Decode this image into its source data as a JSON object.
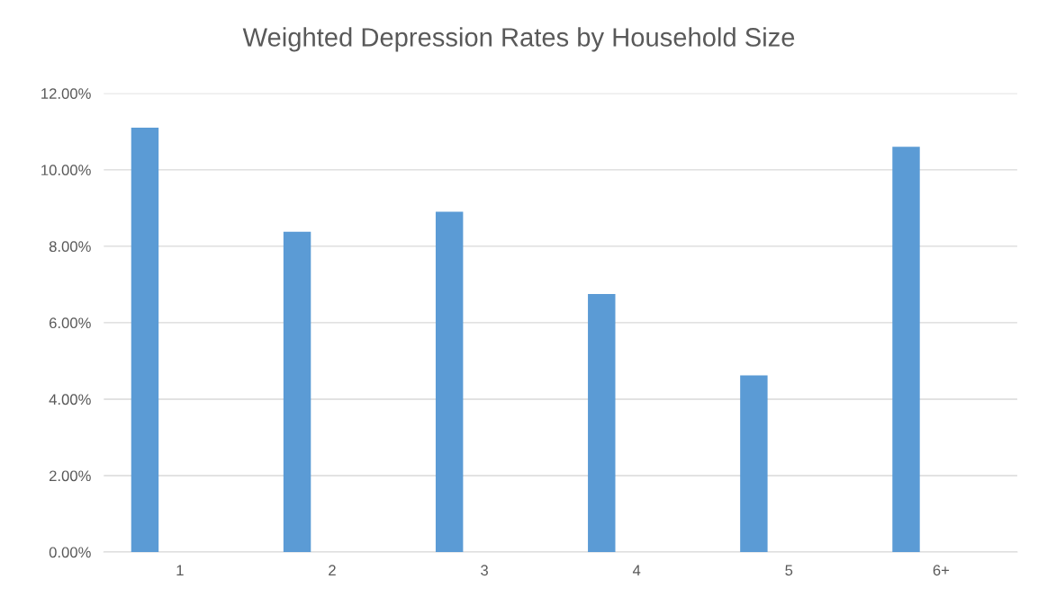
{
  "chart_data": {
    "type": "bar",
    "title": "Weighted Depression Rates by Household Size",
    "categories": [
      "1",
      "2",
      "3",
      "4",
      "5",
      "6+"
    ],
    "values": [
      11.1,
      8.38,
      8.9,
      6.75,
      4.62,
      10.6
    ],
    "color": "#5b9bd5",
    "ylim": [
      0,
      12
    ],
    "yticks": [
      {
        "value": 0,
        "label": "0.00%"
      },
      {
        "value": 2,
        "label": "2.00%"
      },
      {
        "value": 4,
        "label": "4.00%"
      },
      {
        "value": 6,
        "label": "6.00%"
      },
      {
        "value": 8,
        "label": "8.00%"
      },
      {
        "value": 10,
        "label": "10.00%"
      },
      {
        "value": 12,
        "label": "12.00%"
      }
    ],
    "grid": "y"
  }
}
